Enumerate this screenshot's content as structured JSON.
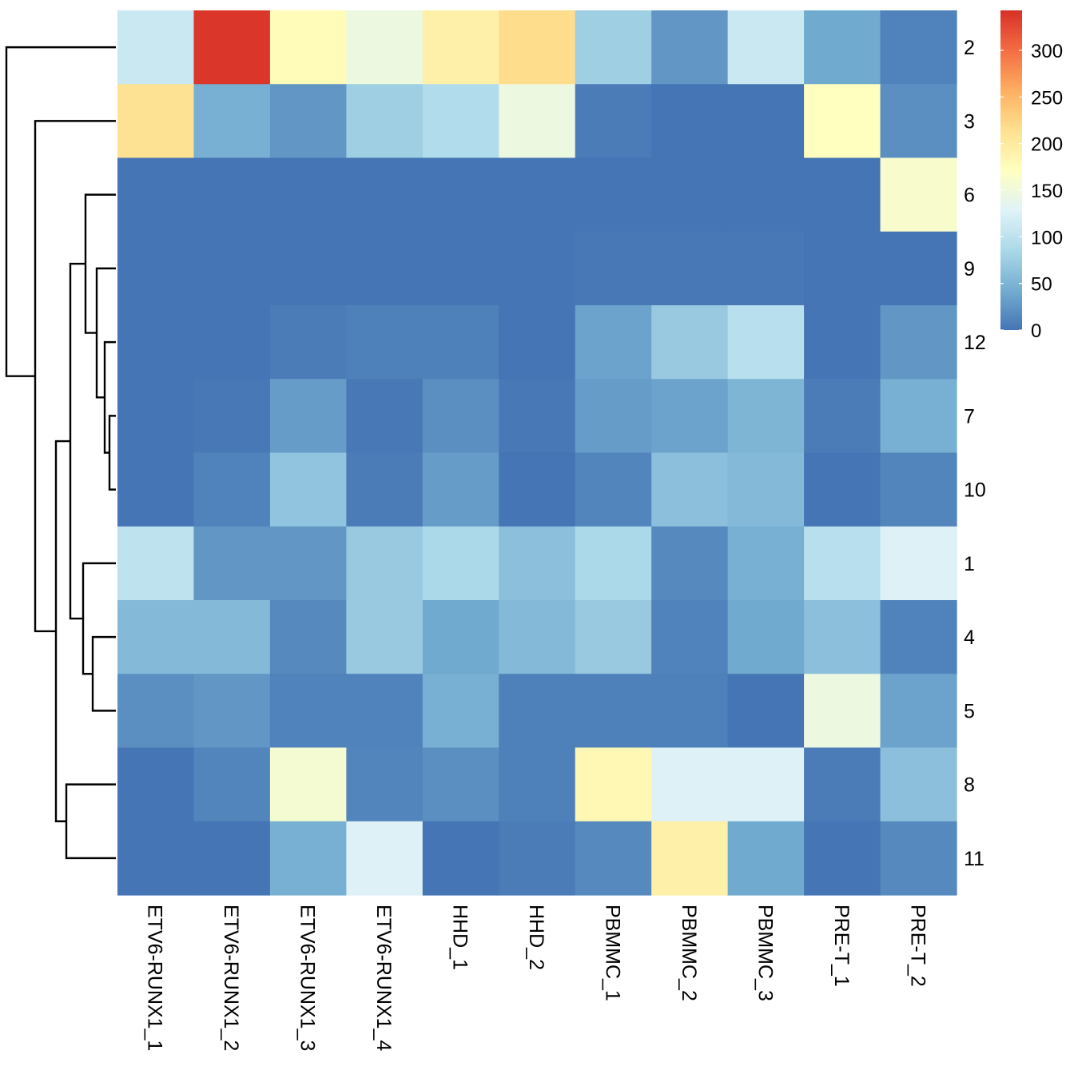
{
  "chart_data": {
    "type": "heatmap",
    "columns": [
      "ETV6-RUNX1_1",
      "ETV6-RUNX1_2",
      "ETV6-RUNX1_3",
      "ETV6-RUNX1_4",
      "HHD_1",
      "HHD_2",
      "PBMMC_1",
      "PBMMC_2",
      "PBMMC_3",
      "PRE-T_1",
      "PRE-T_2"
    ],
    "rows": [
      "2",
      "3",
      "6",
      "9",
      "12",
      "7",
      "10",
      "1",
      "4",
      "5",
      "8",
      "11"
    ],
    "values": [
      [
        110,
        335,
        175,
        145,
        190,
        215,
        75,
        25,
        110,
        40,
        10
      ],
      [
        210,
        45,
        25,
        75,
        90,
        145,
        5,
        0,
        0,
        170,
        20
      ],
      [
        0,
        0,
        0,
        0,
        0,
        0,
        0,
        0,
        0,
        0,
        160
      ],
      [
        0,
        0,
        0,
        0,
        0,
        0,
        3,
        3,
        3,
        0,
        0
      ],
      [
        0,
        0,
        5,
        8,
        8,
        0,
        35,
        70,
        95,
        0,
        25
      ],
      [
        0,
        3,
        30,
        3,
        20,
        3,
        30,
        35,
        50,
        5,
        45
      ],
      [
        0,
        10,
        65,
        5,
        30,
        0,
        12,
        60,
        55,
        0,
        12
      ],
      [
        100,
        25,
        25,
        70,
        85,
        60,
        85,
        15,
        45,
        95,
        125
      ],
      [
        55,
        55,
        15,
        70,
        40,
        55,
        70,
        10,
        40,
        60,
        10
      ],
      [
        20,
        25,
        10,
        10,
        45,
        8,
        8,
        8,
        0,
        145,
        35
      ],
      [
        0,
        12,
        155,
        12,
        20,
        8,
        180,
        125,
        125,
        5,
        60
      ],
      [
        0,
        0,
        45,
        125,
        0,
        5,
        15,
        190,
        40,
        0,
        15
      ]
    ],
    "colorbar": {
      "min": 0,
      "max": 340,
      "ticks": [
        "0",
        "50",
        "100",
        "150",
        "200",
        "250",
        "300"
      ],
      "tick_values": [
        0,
        50,
        100,
        150,
        200,
        250,
        300
      ],
      "palette": [
        "#4575b4",
        "#74add1",
        "#abd9e9",
        "#e0f3f8",
        "#ffffbf",
        "#fee090",
        "#fdae61",
        "#f46d43",
        "#d73027"
      ]
    },
    "dendrogram": "rows",
    "legend_position": "top-right"
  }
}
